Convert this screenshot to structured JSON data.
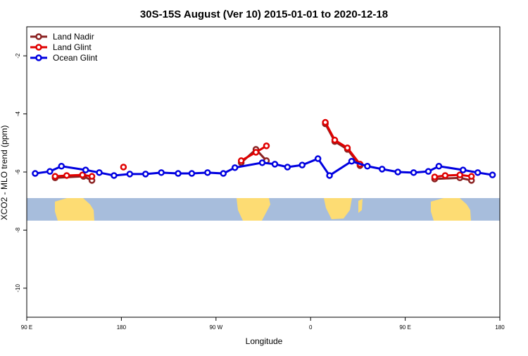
{
  "chart_data": {
    "type": "line",
    "title": "30S-15S August (Ver 10)   2015-01-01 to 2020-12-18",
    "x_label": "Longitude",
    "y_label": "XCO2 - MLO trend (ppm)",
    "xlim": [
      90,
      540
    ],
    "ylim": [
      -11,
      -1
    ],
    "xticks": [
      {
        "value": 90,
        "label": "90 E"
      },
      180,
      {
        "value": 270,
        "label": "90 W"
      },
      {
        "value": 360,
        "label": "0"
      },
      {
        "value": 450,
        "label": "90 E"
      },
      {
        "value": 540,
        "label": "180"
      }
    ],
    "yticks": [
      -10,
      -8,
      -6,
      -4,
      -2
    ],
    "legend": "top-left",
    "series": [
      {
        "name": "Land Nadir",
        "color": "#8b2323",
        "x": [
          117,
          144,
          152,
          null,
          294,
          308,
          318,
          null,
          374,
          383,
          395,
          407,
          null,
          478,
          502,
          513
        ],
        "values": [
          -6.2,
          -6.15,
          -6.29,
          null,
          -5.68,
          -5.22,
          -5.61,
          null,
          -4.34,
          -4.95,
          -5.22,
          -5.78,
          null,
          -6.24,
          -6.2,
          -6.29
        ]
      },
      {
        "name": "Land Glint",
        "color": "#e00000",
        "x": [
          117,
          128,
          143,
          152,
          null,
          182,
          null,
          294,
          308,
          318,
          null,
          374,
          383,
          395,
          407,
          null,
          478,
          488,
          502,
          513
        ],
        "values": [
          -6.15,
          -6.12,
          -6.1,
          -6.15,
          null,
          -5.83,
          null,
          -5.61,
          -5.32,
          -5.1,
          null,
          -4.29,
          -4.9,
          -5.17,
          -5.73,
          null,
          -6.17,
          -6.12,
          -6.1,
          -6.15
        ]
      },
      {
        "name": "Ocean Glint",
        "color": "#0000e0",
        "x": [
          98,
          112,
          123,
          146,
          159,
          173,
          188,
          203,
          218,
          234,
          247,
          262,
          277,
          288,
          314,
          326,
          338,
          352,
          367,
          378,
          399,
          414,
          428,
          443,
          458,
          472,
          482,
          505,
          519,
          533
        ],
        "values": [
          -6.05,
          -5.98,
          -5.8,
          -5.93,
          -6.02,
          -6.12,
          -6.07,
          -6.07,
          -6.02,
          -6.05,
          -6.05,
          -6.02,
          -6.05,
          -5.85,
          -5.68,
          -5.73,
          -5.83,
          -5.76,
          -5.54,
          -6.12,
          -5.63,
          -5.8,
          -5.9,
          -6.0,
          -6.02,
          -5.98,
          -5.8,
          -5.93,
          -6.02,
          -6.1
        ]
      }
    ]
  }
}
